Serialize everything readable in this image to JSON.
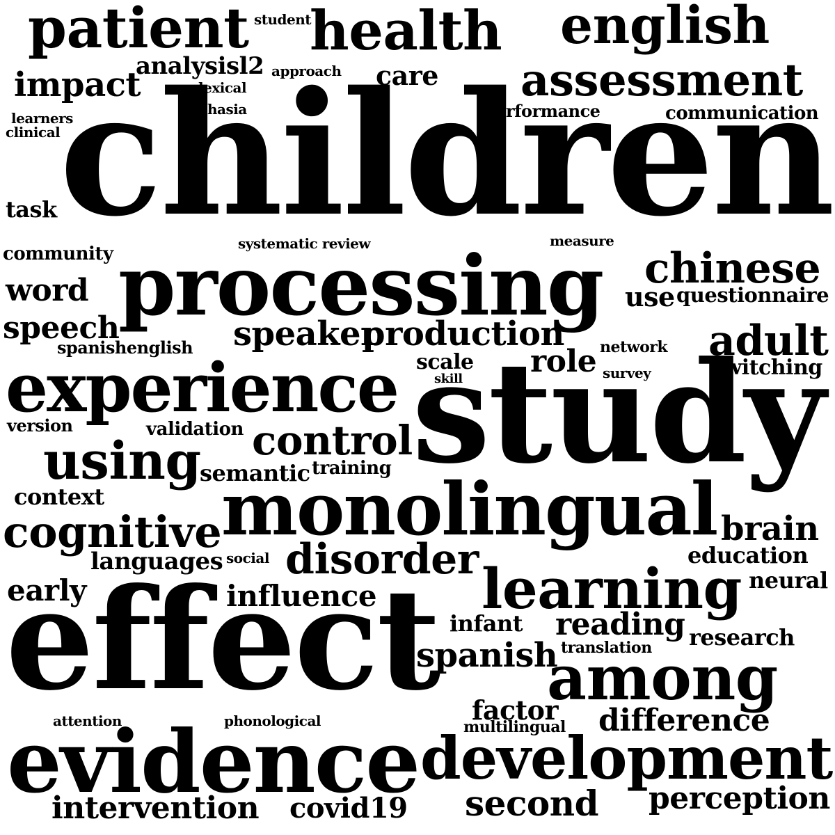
{
  "colors": {
    "background": "#ffffff",
    "text": "#000000"
  },
  "words": [
    "patient",
    "student",
    "health",
    "english",
    "analysisl2",
    "approach",
    "care",
    "impact",
    "lexical",
    "assessment",
    "aphasia",
    "performance",
    "communication",
    "learners",
    "clinical",
    "children",
    "task",
    "systematic review",
    "measure",
    "community",
    "processing",
    "chinese",
    "use",
    "questionnaire",
    "word",
    "speech",
    "speaker",
    "production",
    "adult",
    "spanishenglish",
    "network",
    "role",
    "scale",
    "switching",
    "survey",
    "skill",
    "experience",
    "study",
    "version",
    "validation",
    "control",
    "using",
    "semantic",
    "training",
    "context",
    "monolingual",
    "brain",
    "cognitive",
    "languages",
    "social",
    "disorder",
    "education",
    "neural",
    "early",
    "learning",
    "influence",
    "infant",
    "reading",
    "effect",
    "research",
    "translation",
    "spanish",
    "among",
    "factor",
    "attention",
    "phonological",
    "multilingual",
    "difference",
    "evidence",
    "development",
    "intervention",
    "covid19",
    "second",
    "perception"
  ]
}
